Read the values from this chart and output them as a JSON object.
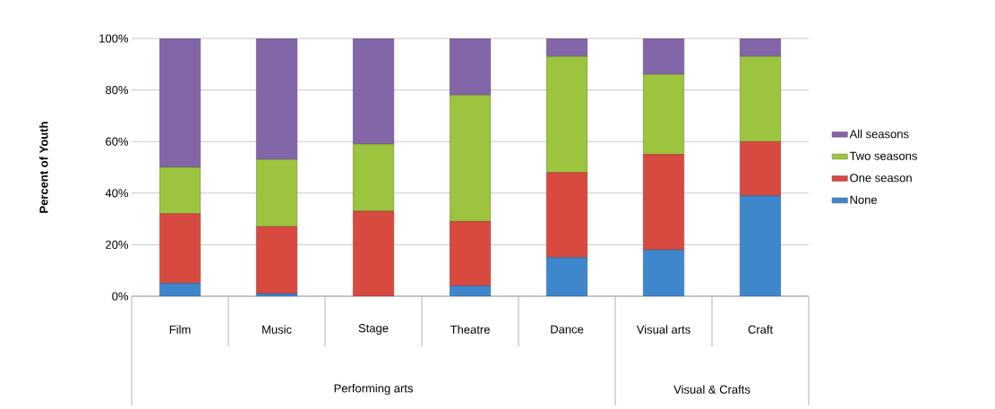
{
  "chart_data": {
    "type": "bar",
    "stacked": true,
    "ylabel": "Percent of Youth",
    "categories": [
      "Film",
      "Music",
      "Stage",
      "Theatre",
      "Dance",
      "Visual arts",
      "Craft"
    ],
    "series": [
      {
        "name": "None",
        "color": "#3f87cc",
        "values": [
          5,
          1,
          0,
          4,
          15,
          18,
          39
        ]
      },
      {
        "name": "One season",
        "color": "#d84a40",
        "values": [
          27,
          26,
          33,
          25,
          33,
          37,
          21
        ]
      },
      {
        "name": "Two seasons",
        "color": "#9cc43e",
        "values": [
          18,
          26,
          26,
          49,
          45,
          31,
          33
        ]
      },
      {
        "name": "All seasons",
        "color": "#8266a8",
        "values": [
          50,
          47,
          41,
          22,
          7,
          14,
          7
        ]
      }
    ],
    "ylim": [
      0,
      100
    ],
    "yticks": [
      {
        "value": 0,
        "label": "0%"
      },
      {
        "value": 20,
        "label": "20%"
      },
      {
        "value": 40,
        "label": "40%"
      },
      {
        "value": 60,
        "label": "60%"
      },
      {
        "value": 80,
        "label": "80%"
      },
      {
        "value": 100,
        "label": "100%"
      }
    ],
    "grid": "y",
    "legend": "right",
    "annotations": [
      "Performing arts",
      "Visual & Crafts"
    ]
  }
}
